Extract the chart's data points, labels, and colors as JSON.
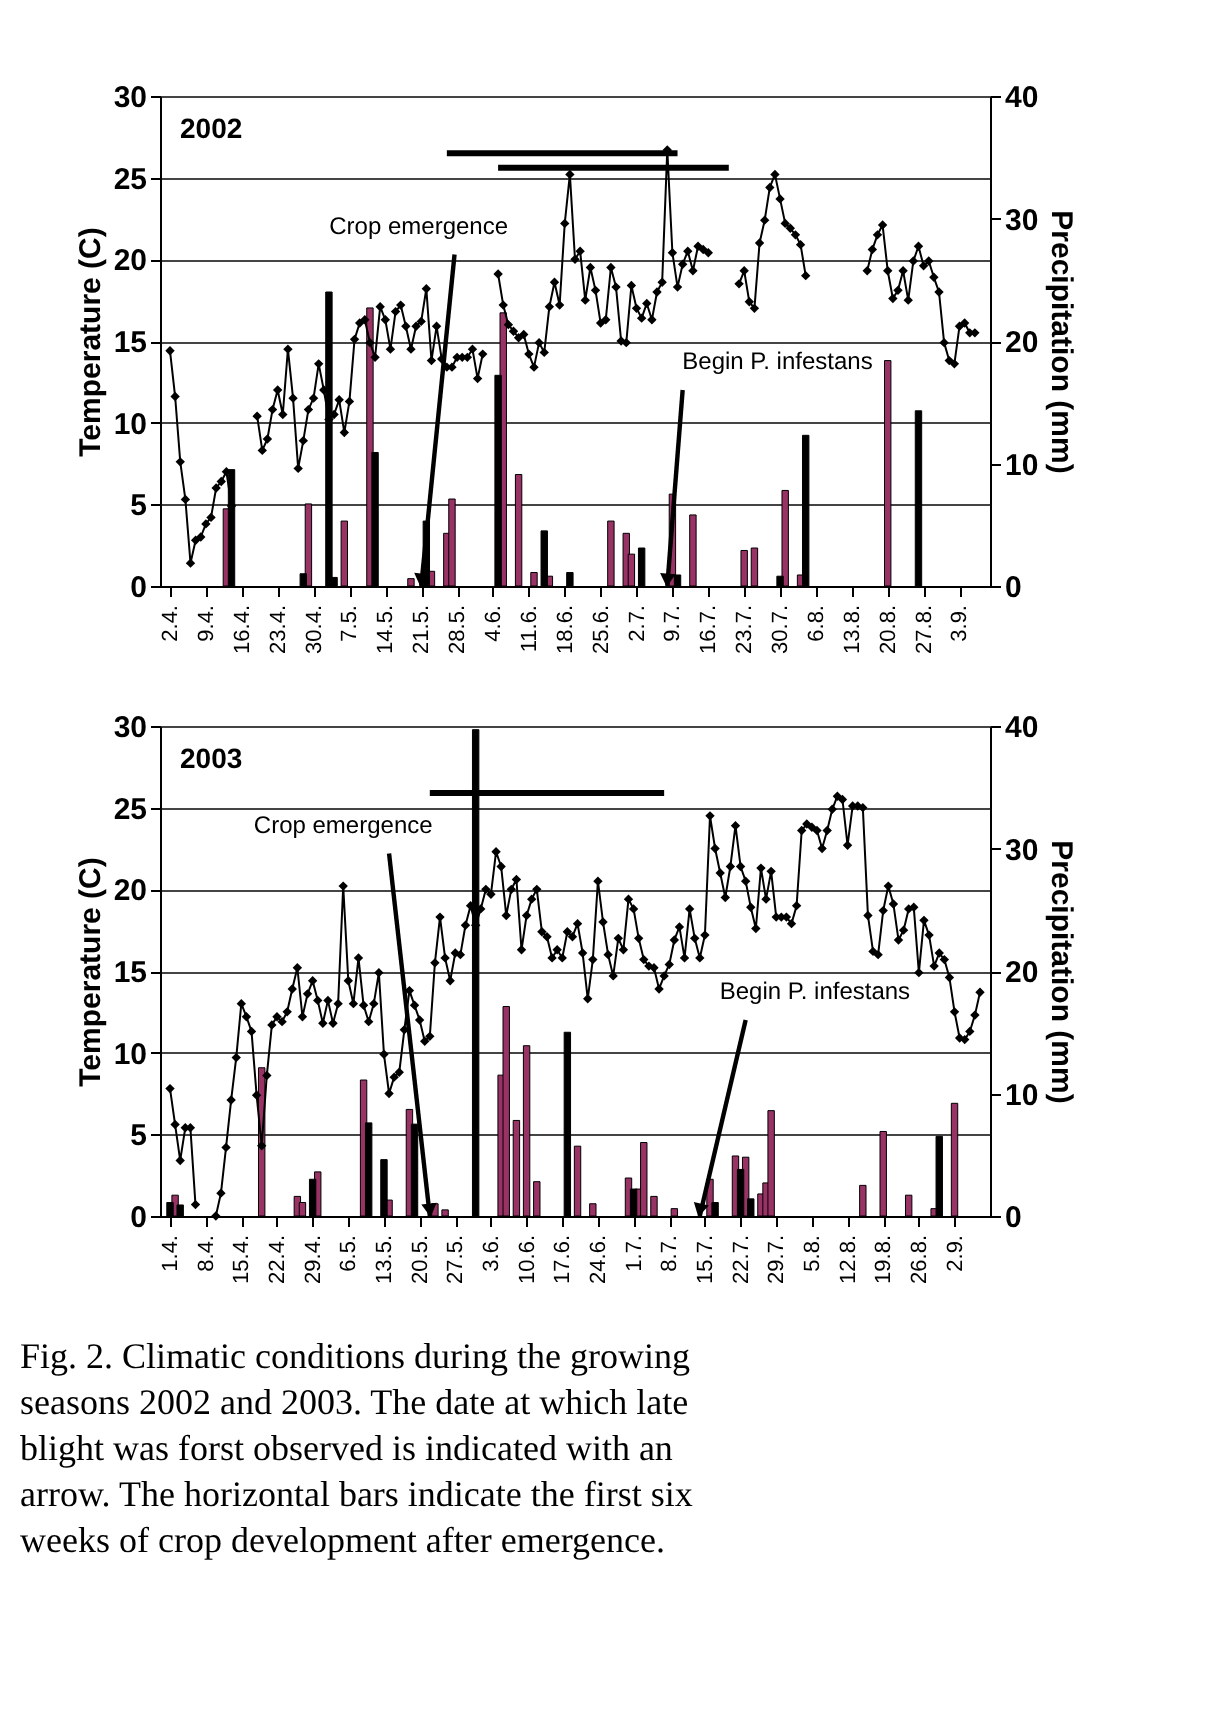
{
  "chart_data": [
    {
      "type": "line",
      "title": "2002",
      "ylabel": "Temperature (C)",
      "y2label": "Precipitation (mm)",
      "xlim": [
        "2002-04-02",
        "2002-09-07"
      ],
      "xticks": [
        {
          "value": "2002-04-02",
          "label": "2.4."
        },
        {
          "value": "2002-04-09",
          "label": "9.4."
        },
        {
          "value": "2002-04-16",
          "label": "16.4."
        },
        {
          "value": "2002-04-23",
          "label": "23.4."
        },
        {
          "value": "2002-04-30",
          "label": "30.4."
        },
        {
          "value": "2002-05-07",
          "label": "7.5."
        },
        {
          "value": "2002-05-14",
          "label": "14.5."
        },
        {
          "value": "2002-05-21",
          "label": "21.5."
        },
        {
          "value": "2002-05-28",
          "label": "28.5."
        },
        {
          "value": "2002-06-04",
          "label": "4.6."
        },
        {
          "value": "2002-06-11",
          "label": "11.6."
        },
        {
          "value": "2002-06-18",
          "label": "18.6."
        },
        {
          "value": "2002-06-25",
          "label": "25.6."
        },
        {
          "value": "2002-07-02",
          "label": "2.7."
        },
        {
          "value": "2002-07-09",
          "label": "9.7."
        },
        {
          "value": "2002-07-16",
          "label": "16.7."
        },
        {
          "value": "2002-07-23",
          "label": "23.7."
        },
        {
          "value": "2002-07-30",
          "label": "30.7."
        },
        {
          "value": "2002-08-06",
          "label": "6.8."
        },
        {
          "value": "2002-08-13",
          "label": "13.8."
        },
        {
          "value": "2002-08-20",
          "label": "20.8."
        },
        {
          "value": "2002-08-27",
          "label": "27.8."
        },
        {
          "value": "2002-09-03",
          "label": "3.9."
        }
      ],
      "ylim": [
        0,
        30
      ],
      "yticks": [
        0,
        5,
        10,
        15,
        20,
        25,
        30
      ],
      "y2lim": [
        0,
        40
      ],
      "y2ticks": [
        0,
        10,
        20,
        30,
        40
      ],
      "grid": "y",
      "series": [
        {
          "type": "bar",
          "axis": "y2",
          "color": "#993366",
          "x": [
            "2002-04-13",
            "2002-04-29",
            "2002-05-06",
            "2002-05-11",
            "2002-05-19",
            "2002-05-23",
            "2002-05-26",
            "2002-05-27",
            "2002-06-06",
            "2002-06-09",
            "2002-06-12",
            "2002-06-15",
            "2002-06-27",
            "2002-06-30",
            "2002-07-01",
            "2002-07-09",
            "2002-07-13",
            "2002-07-23",
            "2002-07-25",
            "2002-07-31",
            "2002-08-03",
            "2002-08-20"
          ],
          "values": [
            6.3,
            6.7,
            5.3,
            22.7,
            0.6,
            1.2,
            4.3,
            7.1,
            22.3,
            9.1,
            1.1,
            0.8,
            5.3,
            4.3,
            2.6,
            7.5,
            5.8,
            2.9,
            3.1,
            7.8,
            0.9,
            18.4
          ]
        },
        {
          "type": "bar",
          "axis": "y2",
          "color": "#000000",
          "x": [
            "2002-04-14",
            "2002-04-28",
            "2002-05-03",
            "2002-05-04",
            "2002-05-12",
            "2002-05-22",
            "2002-06-05",
            "2002-06-14",
            "2002-06-19",
            "2002-07-03",
            "2002-07-10",
            "2002-07-30",
            "2002-08-04",
            "2002-08-26"
          ],
          "values": [
            9.5,
            1.0,
            24.0,
            0.7,
            10.9,
            5.3,
            17.2,
            4.5,
            1.1,
            3.1,
            0.9,
            0.8,
            12.3,
            14.3
          ]
        },
        {
          "color": "#000000",
          "marker": "diamond",
          "line_style": "solid",
          "x": [
            "2002-04-02",
            "2002-04-03",
            "2002-04-04",
            "2002-04-05",
            "2002-04-06",
            "2002-04-07",
            "2002-04-08",
            "2002-04-09",
            "2002-04-10",
            "2002-04-11",
            "2002-04-12",
            "2002-04-13",
            "2002-04-14",
            "2002-04-15",
            "2002-04-16",
            "2002-04-17",
            "2002-04-18",
            "2002-04-19",
            "2002-04-20",
            "2002-04-21",
            "2002-04-22",
            "2002-04-23",
            "2002-04-24",
            "2002-04-25",
            "2002-04-26",
            "2002-04-27",
            "2002-04-28",
            "2002-04-29",
            "2002-04-30",
            "2002-05-01",
            "2002-05-02",
            "2002-05-03",
            "2002-05-04",
            "2002-05-05",
            "2002-05-06",
            "2002-05-07",
            "2002-05-08",
            "2002-05-09",
            "2002-05-10",
            "2002-05-11",
            "2002-05-12",
            "2002-05-13",
            "2002-05-14",
            "2002-05-15",
            "2002-05-16",
            "2002-05-17",
            "2002-05-18",
            "2002-05-19",
            "2002-05-20",
            "2002-05-21",
            "2002-05-22",
            "2002-05-23",
            "2002-05-24",
            "2002-05-25",
            "2002-05-26",
            "2002-05-27",
            "2002-05-28",
            "2002-05-29",
            "2002-05-30",
            "2002-05-31",
            "2002-06-01",
            "2002-06-02",
            "2002-06-03",
            "2002-06-04",
            "2002-06-05",
            "2002-06-06",
            "2002-06-07",
            "2002-06-08",
            "2002-06-09",
            "2002-06-10",
            "2002-06-11",
            "2002-06-12",
            "2002-06-13",
            "2002-06-14",
            "2002-06-15",
            "2002-06-16",
            "2002-06-17",
            "2002-06-18",
            "2002-06-19",
            "2002-06-20",
            "2002-06-21",
            "2002-06-22",
            "2002-06-23",
            "2002-06-24",
            "2002-06-25",
            "2002-06-26",
            "2002-06-27",
            "2002-06-28",
            "2002-06-29",
            "2002-06-30",
            "2002-07-01",
            "2002-07-02",
            "2002-07-03",
            "2002-07-04",
            "2002-07-05",
            "2002-07-06",
            "2002-07-07",
            "2002-07-08",
            "2002-07-09",
            "2002-07-10",
            "2002-07-11",
            "2002-07-12",
            "2002-07-13",
            "2002-07-14",
            "2002-07-15",
            "2002-07-16",
            "2002-07-17",
            "2002-07-18",
            "2002-07-19",
            "2002-07-20",
            "2002-07-21",
            "2002-07-22",
            "2002-07-23",
            "2002-07-24",
            "2002-07-25",
            "2002-07-26",
            "2002-07-27",
            "2002-07-28",
            "2002-07-29",
            "2002-07-30",
            "2002-07-31",
            "2002-08-01",
            "2002-08-02",
            "2002-08-03",
            "2002-08-04",
            "2002-08-05",
            "2002-08-06",
            "2002-08-07",
            "2002-08-08",
            "2002-08-09",
            "2002-08-10",
            "2002-08-11",
            "2002-08-12",
            "2002-08-13",
            "2002-08-14",
            "2002-08-15",
            "2002-08-16",
            "2002-08-17",
            "2002-08-18",
            "2002-08-19",
            "2002-08-20",
            "2002-08-21",
            "2002-08-22",
            "2002-08-23",
            "2002-08-24",
            "2002-08-25",
            "2002-08-26",
            "2002-08-27",
            "2002-08-28",
            "2002-08-29",
            "2002-08-30",
            "2002-08-31",
            "2002-09-01",
            "2002-09-02",
            "2002-09-03",
            "2002-09-04",
            "2002-09-05",
            "2002-09-06"
          ],
          "values": [
            14.4,
            11.6,
            7.6,
            5.3,
            1.4,
            2.8,
            3.0,
            3.8,
            4.2,
            6.0,
            6.4,
            7.0,
            4.9,
            null,
            null,
            null,
            null,
            10.4,
            8.3,
            9.0,
            10.8,
            12.0,
            10.5,
            14.5,
            11.5,
            7.2,
            8.9,
            10.8,
            11.5,
            13.6,
            12.0,
            10.2,
            10.5,
            11.4,
            9.4,
            11.3,
            15.1,
            16.1,
            16.3,
            14.9,
            14.0,
            17.1,
            16.3,
            14.5,
            16.8,
            17.2,
            15.9,
            14.5,
            15.9,
            16.2,
            18.2,
            13.8,
            15.9,
            13.9,
            13.4,
            13.4,
            14.0,
            14.0,
            14.0,
            14.5,
            12.7,
            14.2,
            null,
            null,
            19.1,
            17.2,
            16.0,
            15.6,
            15.2,
            15.4,
            14.2,
            13.4,
            14.9,
            14.3,
            17.1,
            18.6,
            17.2,
            22.2,
            25.2,
            20.0,
            20.5,
            17.5,
            19.5,
            18.1,
            16.1,
            16.3,
            19.5,
            18.3,
            15.0,
            14.9,
            18.4,
            17.0,
            16.4,
            17.3,
            16.3,
            18.0,
            18.6,
            26.7,
            20.4,
            18.3,
            19.7,
            20.5,
            19.3,
            20.8,
            20.6,
            20.4,
            null,
            null,
            null,
            null,
            null,
            18.5,
            19.3,
            17.4,
            17.0,
            21.0,
            22.4,
            24.4,
            25.2,
            23.7,
            22.2,
            21.9,
            21.5,
            20.9,
            19.0,
            null,
            null,
            null,
            null,
            null,
            null,
            null,
            null,
            null,
            null,
            null,
            19.3,
            20.6,
            21.5,
            22.1,
            19.3,
            17.6,
            18.1,
            19.3,
            17.5,
            19.9,
            20.8,
            19.6,
            19.9,
            18.9,
            18.0,
            14.9,
            13.8,
            13.6,
            15.9,
            16.1,
            15.5,
            15.5
          ]
        },
        {
          "color": "#000000",
          "marker": "none",
          "x": [
            "2002-05-26",
            "2002-07-10"
          ],
          "values": [
            26.5,
            26.5
          ]
        },
        {
          "color": "#000000",
          "marker": "none",
          "x": [
            "2002-06-05",
            "2002-07-20"
          ],
          "values": [
            25.6,
            25.6
          ]
        }
      ],
      "annotations": [
        {
          "text": "Crop emergence",
          "x": "2002-05-21",
          "y": 0
        },
        {
          "text": "Begin P. infestans",
          "x": "2002-07-08",
          "y": 0
        }
      ]
    },
    {
      "type": "line",
      "title": "2003",
      "ylabel": "Temperature (C)",
      "y2label": "Precipitation (mm)",
      "xlim": [
        "2003-04-01",
        "2003-09-07"
      ],
      "xticks": [
        {
          "value": "2003-04-01",
          "label": "1.4."
        },
        {
          "value": "2003-04-08",
          "label": "8.4."
        },
        {
          "value": "2003-04-15",
          "label": "15.4."
        },
        {
          "value": "2003-04-22",
          "label": "22.4."
        },
        {
          "value": "2003-04-29",
          "label": "29.4."
        },
        {
          "value": "2003-05-06",
          "label": "6.5."
        },
        {
          "value": "2003-05-13",
          "label": "13.5."
        },
        {
          "value": "2003-05-20",
          "label": "20.5."
        },
        {
          "value": "2003-05-27",
          "label": "27.5."
        },
        {
          "value": "2003-06-03",
          "label": "3.6."
        },
        {
          "value": "2003-06-10",
          "label": "10.6."
        },
        {
          "value": "2003-06-17",
          "label": "17.6."
        },
        {
          "value": "2003-06-24",
          "label": "24.6."
        },
        {
          "value": "2003-07-01",
          "label": "1.7."
        },
        {
          "value": "2003-07-08",
          "label": "8.7."
        },
        {
          "value": "2003-07-15",
          "label": "15.7."
        },
        {
          "value": "2003-07-22",
          "label": "22.7."
        },
        {
          "value": "2003-07-29",
          "label": "29.7."
        },
        {
          "value": "2003-08-05",
          "label": "5.8."
        },
        {
          "value": "2003-08-12",
          "label": "12.8."
        },
        {
          "value": "2003-08-19",
          "label": "19.8."
        },
        {
          "value": "2003-08-26",
          "label": "26.8."
        },
        {
          "value": "2003-09-02",
          "label": "2.9."
        }
      ],
      "ylim": [
        0,
        30
      ],
      "yticks": [
        0,
        5,
        10,
        15,
        20,
        25,
        30
      ],
      "y2lim": [
        0,
        40
      ],
      "y2ticks": [
        0,
        10,
        20,
        30,
        40
      ],
      "grid": "y",
      "series": [
        {
          "type": "bar",
          "axis": "y2",
          "color": "#993366",
          "x": [
            "2003-04-02",
            "2003-04-19",
            "2003-04-26",
            "2003-04-27",
            "2003-04-30",
            "2003-05-09",
            "2003-05-14",
            "2003-05-18",
            "2003-05-23",
            "2003-05-25",
            "2003-06-05",
            "2003-06-06",
            "2003-06-08",
            "2003-06-10",
            "2003-06-12",
            "2003-06-20",
            "2003-06-23",
            "2003-06-30",
            "2003-07-02",
            "2003-07-03",
            "2003-07-05",
            "2003-07-09",
            "2003-07-16",
            "2003-07-21",
            "2003-07-23",
            "2003-07-26",
            "2003-07-27",
            "2003-07-28",
            "2003-08-15",
            "2003-08-19",
            "2003-08-24",
            "2003-08-29",
            "2003-09-02"
          ],
          "values": [
            1.7,
            12.1,
            1.6,
            1.1,
            3.6,
            11.1,
            1.3,
            8.7,
            1.0,
            0.5,
            11.5,
            17.1,
            7.8,
            13.9,
            2.8,
            5.7,
            1.0,
            3.1,
            2.2,
            6.0,
            1.6,
            0.6,
            3.0,
            4.9,
            4.8,
            1.8,
            2.7,
            8.6,
            2.5,
            6.9,
            1.7,
            0.6,
            9.2
          ]
        },
        {
          "type": "bar",
          "axis": "y2",
          "color": "#000000",
          "x": [
            "2003-04-01",
            "2003-04-03",
            "2003-04-29",
            "2003-05-10",
            "2003-05-13",
            "2003-05-19",
            "2003-05-31",
            "2003-06-18",
            "2003-07-01",
            "2003-07-17",
            "2003-07-22",
            "2003-07-24",
            "2003-08-30"
          ],
          "values": [
            1.1,
            0.9,
            3.0,
            7.6,
            4.6,
            7.5,
            39.7,
            15.0,
            2.2,
            1.1,
            3.8,
            1.4,
            6.5
          ]
        },
        {
          "color": "#000000",
          "marker": "diamond",
          "line_style": "solid",
          "x": [
            "2003-04-01",
            "2003-04-02",
            "2003-04-03",
            "2003-04-04",
            "2003-04-05",
            "2003-04-06",
            "2003-04-07",
            "2003-04-08",
            "2003-04-09",
            "2003-04-10",
            "2003-04-11",
            "2003-04-12",
            "2003-04-13",
            "2003-04-14",
            "2003-04-15",
            "2003-04-16",
            "2003-04-17",
            "2003-04-18",
            "2003-04-19",
            "2003-04-20",
            "2003-04-21",
            "2003-04-22",
            "2003-04-23",
            "2003-04-24",
            "2003-04-25",
            "2003-04-26",
            "2003-04-27",
            "2003-04-28",
            "2003-04-29",
            "2003-04-30",
            "2003-05-01",
            "2003-05-02",
            "2003-05-03",
            "2003-05-04",
            "2003-05-05",
            "2003-05-06",
            "2003-05-07",
            "2003-05-08",
            "2003-05-09",
            "2003-05-10",
            "2003-05-11",
            "2003-05-12",
            "2003-05-13",
            "2003-05-14",
            "2003-05-15",
            "2003-05-16",
            "2003-05-17",
            "2003-05-18",
            "2003-05-19",
            "2003-05-20",
            "2003-05-21",
            "2003-05-22",
            "2003-05-23",
            "2003-05-24",
            "2003-05-25",
            "2003-05-26",
            "2003-05-27",
            "2003-05-28",
            "2003-05-29",
            "2003-05-30",
            "2003-05-31",
            "2003-06-01",
            "2003-06-02",
            "2003-06-03",
            "2003-06-04",
            "2003-06-05",
            "2003-06-06",
            "2003-06-07",
            "2003-06-08",
            "2003-06-09",
            "2003-06-10",
            "2003-06-11",
            "2003-06-12",
            "2003-06-13",
            "2003-06-14",
            "2003-06-15",
            "2003-06-16",
            "2003-06-17",
            "2003-06-18",
            "2003-06-19",
            "2003-06-20",
            "2003-06-21",
            "2003-06-22",
            "2003-06-23",
            "2003-06-24",
            "2003-06-25",
            "2003-06-26",
            "2003-06-27",
            "2003-06-28",
            "2003-06-29",
            "2003-06-30",
            "2003-07-01",
            "2003-07-02",
            "2003-07-03",
            "2003-07-04",
            "2003-07-05",
            "2003-07-06",
            "2003-07-07",
            "2003-07-08",
            "2003-07-09",
            "2003-07-10",
            "2003-07-11",
            "2003-07-12",
            "2003-07-13",
            "2003-07-14",
            "2003-07-15",
            "2003-07-16",
            "2003-07-17",
            "2003-07-18",
            "2003-07-19",
            "2003-07-20",
            "2003-07-21",
            "2003-07-22",
            "2003-07-23",
            "2003-07-24",
            "2003-07-25",
            "2003-07-26",
            "2003-07-27",
            "2003-07-28",
            "2003-07-29",
            "2003-07-30",
            "2003-07-31",
            "2003-08-01",
            "2003-08-02",
            "2003-08-03",
            "2003-08-04",
            "2003-08-05",
            "2003-08-06",
            "2003-08-07",
            "2003-08-08",
            "2003-08-09",
            "2003-08-10",
            "2003-08-11",
            "2003-08-12",
            "2003-08-13",
            "2003-08-14",
            "2003-08-15",
            "2003-08-16",
            "2003-08-17",
            "2003-08-18",
            "2003-08-19",
            "2003-08-20",
            "2003-08-21",
            "2003-08-22",
            "2003-08-23",
            "2003-08-24",
            "2003-08-25",
            "2003-08-26",
            "2003-08-27",
            "2003-08-28",
            "2003-08-29",
            "2003-08-30",
            "2003-08-31",
            "2003-09-01",
            "2003-09-02",
            "2003-09-03",
            "2003-09-04",
            "2003-09-05",
            "2003-09-06",
            "2003-09-07"
          ],
          "values": [
            7.8,
            5.6,
            3.4,
            5.4,
            5.4,
            0.7,
            null,
            null,
            null,
            0.0,
            1.4,
            4.2,
            7.1,
            9.7,
            13.0,
            12.2,
            11.3,
            7.4,
            4.3,
            8.6,
            11.7,
            12.2,
            11.9,
            12.5,
            13.9,
            15.2,
            12.2,
            13.6,
            14.4,
            13.2,
            11.8,
            13.2,
            11.8,
            13.0,
            20.2,
            14.4,
            13.0,
            15.8,
            12.9,
            11.9,
            13.0,
            14.9,
            9.9,
            7.5,
            8.5,
            8.8,
            11.4,
            13.8,
            12.9,
            12.0,
            10.7,
            11.0,
            15.5,
            18.3,
            15.8,
            14.4,
            16.1,
            16.0,
            17.8,
            19.0,
            17.8,
            18.8,
            20.0,
            19.7,
            22.3,
            21.4,
            18.4,
            20.0,
            20.6,
            16.3,
            18.4,
            19.4,
            20.0,
            17.4,
            17.1,
            15.8,
            16.3,
            15.8,
            17.4,
            17.1,
            17.9,
            16.1,
            13.3,
            15.7,
            20.5,
            18.0,
            16.0,
            14.7,
            17.0,
            16.3,
            19.4,
            18.8,
            17.0,
            15.7,
            15.3,
            15.2,
            13.9,
            14.7,
            15.4,
            16.9,
            17.7,
            15.8,
            18.8,
            17.0,
            15.8,
            17.2,
            24.5,
            22.5,
            21.0,
            19.5,
            21.4,
            23.9,
            21.4,
            20.5,
            18.9,
            17.6,
            21.3,
            19.4,
            21.1,
            18.3,
            18.3,
            18.3,
            17.9,
            19.0,
            23.6,
            24.0,
            23.8,
            23.6,
            22.5,
            23.6,
            24.9,
            25.7,
            25.5,
            22.7,
            25.1,
            25.1,
            25.0,
            18.4,
            16.2,
            16.0,
            18.7,
            20.2,
            19.1,
            16.9,
            17.5,
            18.8,
            18.9,
            14.9,
            18.1,
            17.2,
            15.3,
            16.1,
            15.7,
            14.6,
            12.5,
            10.9,
            10.8,
            11.3,
            12.3,
            13.7
          ]
        },
        {
          "color": "#000000",
          "marker": "none",
          "x": [
            "2003-05-22",
            "2003-07-07"
          ],
          "values": [
            25.9,
            25.9
          ]
        }
      ],
      "annotations": [
        {
          "text": "Crop emergence",
          "x": "2003-05-22",
          "y": 0
        },
        {
          "text": "Begin P. infestans",
          "x": "2003-07-14",
          "y": 0
        },
        "Fig. 2. Climatic conditions during the growing seasons 2002 and 2003. The date at which late blight was forst observed is indicated with an arrow. The horizontal bars indicate the first six weeks of crop development after emergence."
      ]
    }
  ]
}
